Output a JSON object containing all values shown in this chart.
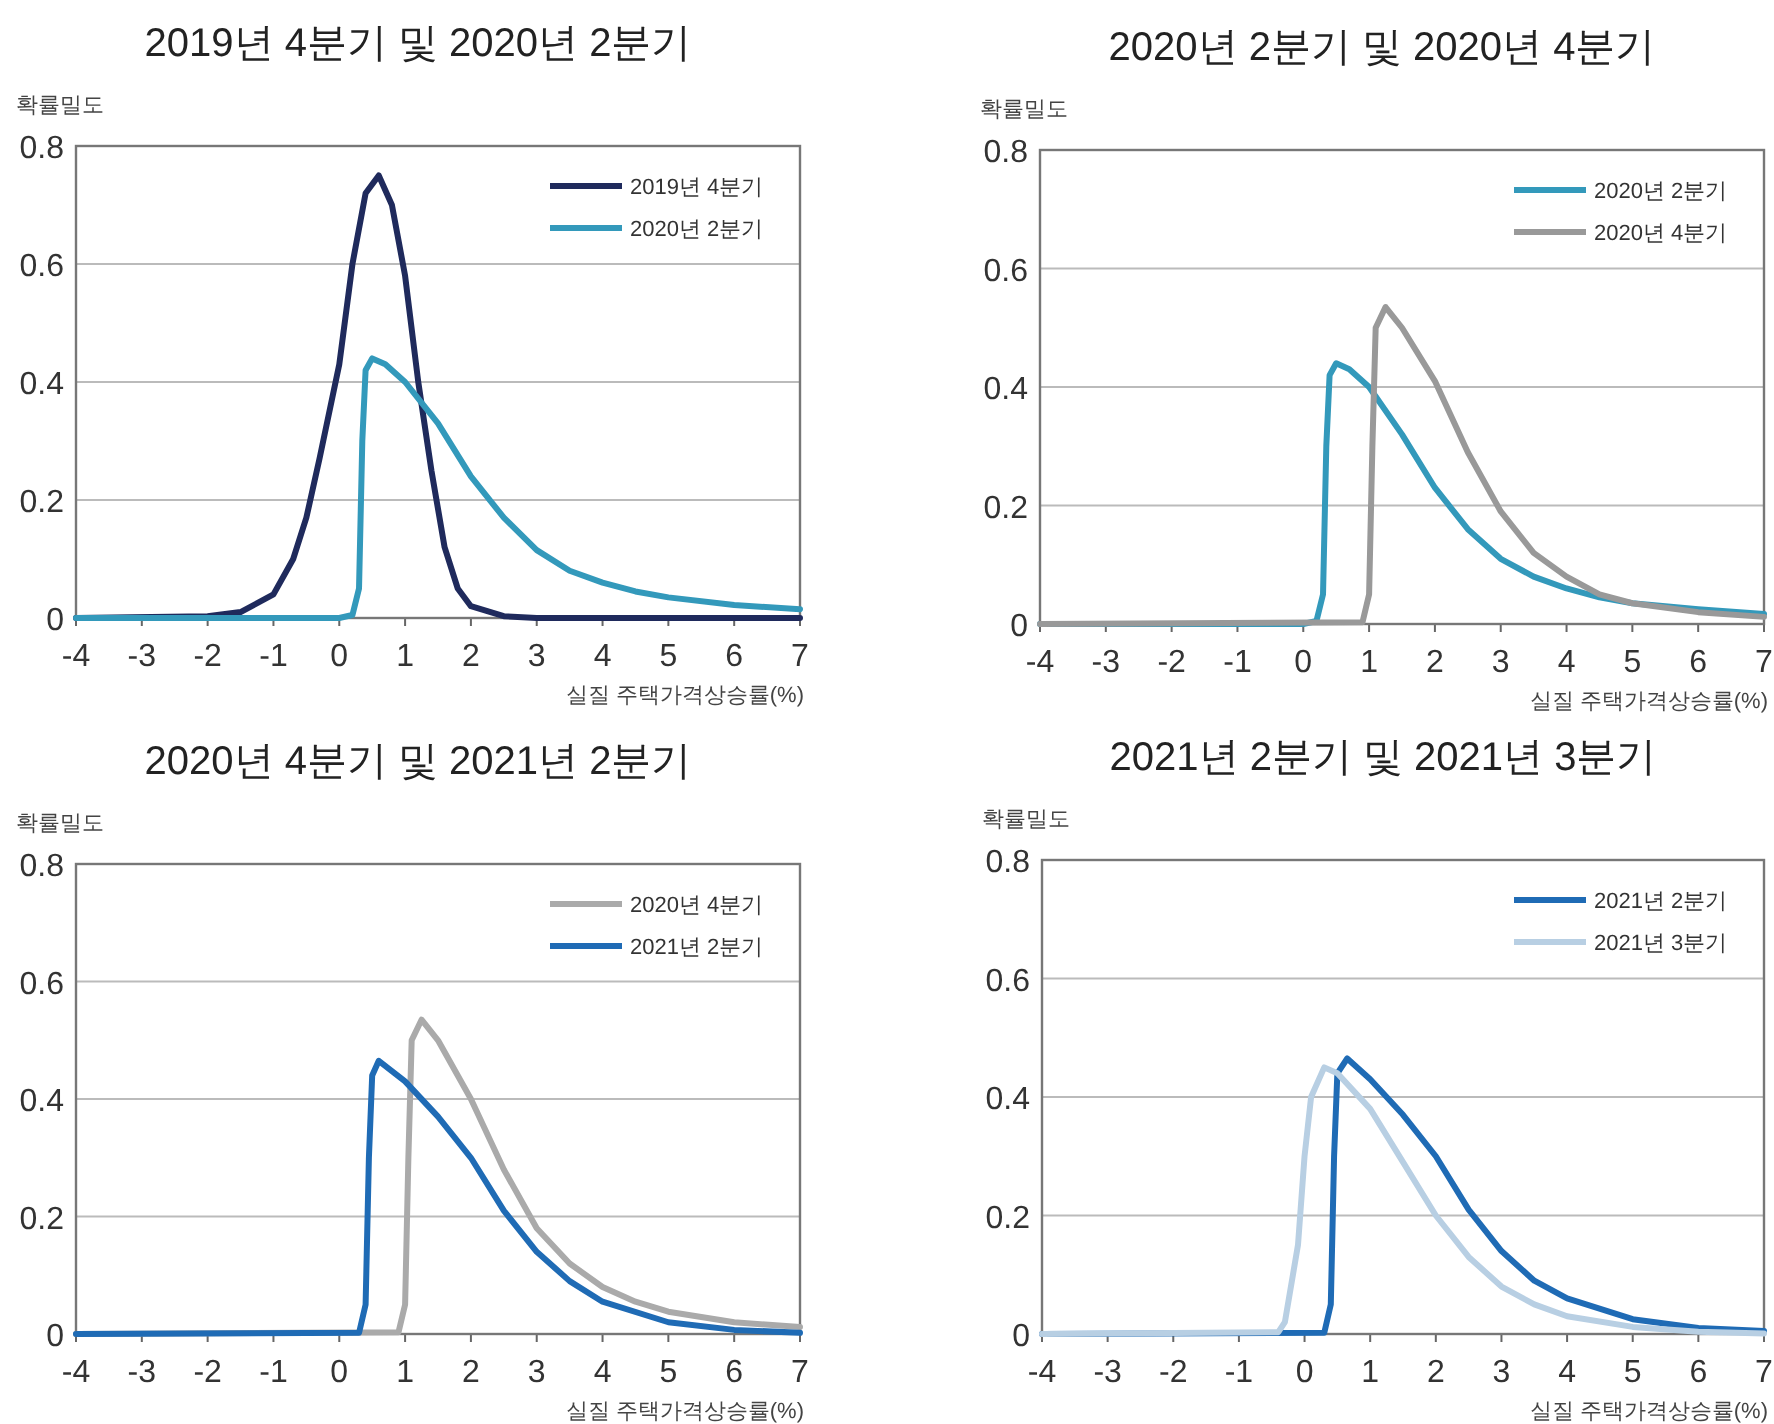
{
  "chart_data": [
    {
      "type": "line",
      "title": "2019년 4분기 및 2020년 2분기",
      "ylabel": "확률밀도",
      "xlabel": "실질 주택가격상승률(%)",
      "xlim": [
        -4,
        7
      ],
      "xticks": [
        -4,
        -3,
        -2,
        -1,
        0,
        1,
        2,
        3,
        4,
        5,
        6,
        7
      ],
      "ylim": [
        0,
        0.8
      ],
      "yticks": [
        0,
        0.2,
        0.4,
        0.6,
        0.8
      ],
      "grid": "y",
      "legend": "top right",
      "series": [
        {
          "name": "2019년 4분기",
          "color": "#1f2a5c",
          "x": [
            -4,
            -2,
            -1.5,
            -1,
            -0.7,
            -0.5,
            -0.3,
            0,
            0.2,
            0.4,
            0.6,
            0.8,
            1,
            1.2,
            1.4,
            1.6,
            1.8,
            2,
            2.5,
            3,
            7
          ],
          "values": [
            0,
            0.003,
            0.01,
            0.04,
            0.1,
            0.17,
            0.27,
            0.43,
            0.6,
            0.72,
            0.75,
            0.7,
            0.58,
            0.4,
            0.25,
            0.12,
            0.05,
            0.02,
            0.003,
            0,
            0
          ]
        },
        {
          "name": "2020년 2분기",
          "color": "#3399bb",
          "x": [
            -4,
            0,
            0.2,
            0.3,
            0.35,
            0.4,
            0.5,
            0.7,
            1,
            1.5,
            2,
            2.5,
            3,
            3.5,
            4,
            4.5,
            5,
            6,
            7
          ],
          "values": [
            0,
            0,
            0.005,
            0.05,
            0.3,
            0.42,
            0.44,
            0.43,
            0.4,
            0.33,
            0.24,
            0.17,
            0.115,
            0.08,
            0.06,
            0.045,
            0.035,
            0.022,
            0.015
          ]
        }
      ]
    },
    {
      "type": "line",
      "title": "2020년 2분기 및 2020년 4분기",
      "ylabel": "확률밀도",
      "xlabel": "실질 주택가격상승률(%)",
      "xlim": [
        -4,
        7
      ],
      "xticks": [
        -4,
        -3,
        -2,
        -1,
        0,
        1,
        2,
        3,
        4,
        5,
        6,
        7
      ],
      "ylim": [
        0,
        0.8
      ],
      "yticks": [
        0,
        0.2,
        0.4,
        0.6,
        0.8
      ],
      "grid": "y",
      "legend": "top right",
      "series": [
        {
          "name": "2020년 2분기",
          "color": "#3399bb",
          "x": [
            -4,
            0,
            0.2,
            0.3,
            0.35,
            0.4,
            0.5,
            0.7,
            1,
            1.5,
            2,
            2.5,
            3,
            3.5,
            4,
            4.5,
            5,
            6,
            7
          ],
          "values": [
            0,
            0,
            0.005,
            0.05,
            0.3,
            0.42,
            0.44,
            0.43,
            0.4,
            0.32,
            0.23,
            0.16,
            0.11,
            0.08,
            0.06,
            0.045,
            0.035,
            0.025,
            0.017
          ]
        },
        {
          "name": "2020년 4분기",
          "color": "#999999",
          "x": [
            -4,
            0.9,
            1,
            1.05,
            1.1,
            1.25,
            1.5,
            2,
            2.5,
            3,
            3.5,
            4,
            4.5,
            5,
            6,
            7
          ],
          "values": [
            0,
            0.003,
            0.05,
            0.3,
            0.5,
            0.535,
            0.5,
            0.41,
            0.29,
            0.19,
            0.12,
            0.08,
            0.05,
            0.035,
            0.02,
            0.012
          ]
        }
      ]
    },
    {
      "type": "line",
      "title": "2020년 4분기 및 2021년 2분기",
      "ylabel": "확률밀도",
      "xlabel": "실질 주택가격상승률(%)",
      "xlim": [
        -4,
        7
      ],
      "xticks": [
        -4,
        -3,
        -2,
        -1,
        0,
        1,
        2,
        3,
        4,
        5,
        6,
        7
      ],
      "ylim": [
        0,
        0.8
      ],
      "yticks": [
        0,
        0.2,
        0.4,
        0.6,
        0.8
      ],
      "grid": "y",
      "legend": "top right",
      "series": [
        {
          "name": "2020년 4분기",
          "color": "#aaaaaa",
          "x": [
            -4,
            0.9,
            1,
            1.05,
            1.1,
            1.25,
            1.5,
            2,
            2.5,
            3,
            3.5,
            4,
            4.5,
            5,
            6,
            7
          ],
          "values": [
            0,
            0.003,
            0.05,
            0.3,
            0.5,
            0.535,
            0.5,
            0.4,
            0.28,
            0.18,
            0.12,
            0.08,
            0.055,
            0.038,
            0.02,
            0.012
          ]
        },
        {
          "name": "2021년 2분기",
          "color": "#1f6bb5",
          "x": [
            -4,
            0.3,
            0.4,
            0.45,
            0.5,
            0.6,
            1,
            1.5,
            2,
            2.5,
            3,
            3.5,
            4,
            5,
            6,
            7
          ],
          "values": [
            0,
            0.002,
            0.05,
            0.3,
            0.44,
            0.465,
            0.43,
            0.37,
            0.3,
            0.21,
            0.14,
            0.09,
            0.055,
            0.02,
            0.007,
            0.002
          ]
        }
      ]
    },
    {
      "type": "line",
      "title": "2021년 2분기 및 2021년 3분기",
      "ylabel": "확률밀도",
      "xlabel": "실질 주택가격상승률(%)",
      "xlim": [
        -4,
        7
      ],
      "xticks": [
        -4,
        -3,
        -2,
        -1,
        0,
        1,
        2,
        3,
        4,
        5,
        6,
        7
      ],
      "ylim": [
        0,
        0.8
      ],
      "yticks": [
        0,
        0.2,
        0.4,
        0.6,
        0.8
      ],
      "grid": "y",
      "legend": "top right",
      "series": [
        {
          "name": "2021년 2분기",
          "color": "#1f6bb5",
          "x": [
            -4,
            0.3,
            0.4,
            0.45,
            0.5,
            0.65,
            1,
            1.5,
            2,
            2.5,
            3,
            3.5,
            4,
            5,
            6,
            7
          ],
          "values": [
            0,
            0.002,
            0.05,
            0.3,
            0.44,
            0.465,
            0.43,
            0.37,
            0.3,
            0.21,
            0.14,
            0.09,
            0.06,
            0.025,
            0.01,
            0.005
          ]
        },
        {
          "name": "2021년 3분기",
          "color": "#b8cfe3",
          "x": [
            -4,
            -0.4,
            -0.3,
            -0.1,
            0,
            0.1,
            0.3,
            0.5,
            1,
            1.5,
            2,
            2.5,
            3,
            3.5,
            4,
            5,
            6,
            7
          ],
          "values": [
            0,
            0.003,
            0.02,
            0.15,
            0.3,
            0.4,
            0.45,
            0.44,
            0.38,
            0.29,
            0.2,
            0.13,
            0.08,
            0.05,
            0.03,
            0.012,
            0.004,
            0.001
          ]
        }
      ]
    }
  ]
}
